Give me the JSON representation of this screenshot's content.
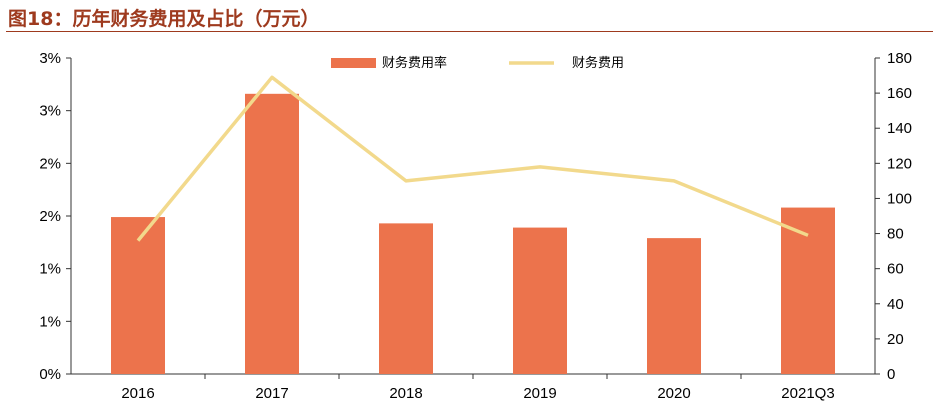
{
  "title": "图18：历年财务费用及占比（万元）",
  "colors": {
    "bar": "#ec734c",
    "line": "#f2d98c",
    "title": "#9e3a1e",
    "axis": "#333333"
  },
  "chart_data": {
    "type": "bar",
    "categories": [
      "2016",
      "2017",
      "2018",
      "2019",
      "2020",
      "2021Q3"
    ],
    "series": [
      {
        "name": "财务费用率",
        "type": "bar",
        "axis": "left",
        "values": [
          1.49,
          2.66,
          1.43,
          1.39,
          1.29,
          1.58
        ]
      },
      {
        "name": "财务费用",
        "type": "line",
        "axis": "right",
        "values": [
          76,
          169,
          110,
          118,
          110,
          79
        ]
      }
    ],
    "left_axis": {
      "ylim": [
        0,
        3
      ],
      "tick_labels": [
        "0%",
        "1%",
        "1%",
        "2%",
        "2%",
        "3%",
        "3%"
      ]
    },
    "right_axis": {
      "ylim": [
        0,
        180
      ],
      "tick_labels": [
        "0",
        "20",
        "40",
        "60",
        "80",
        "100",
        "120",
        "140",
        "160",
        "180"
      ]
    },
    "grid": false,
    "legend_position": "top"
  }
}
